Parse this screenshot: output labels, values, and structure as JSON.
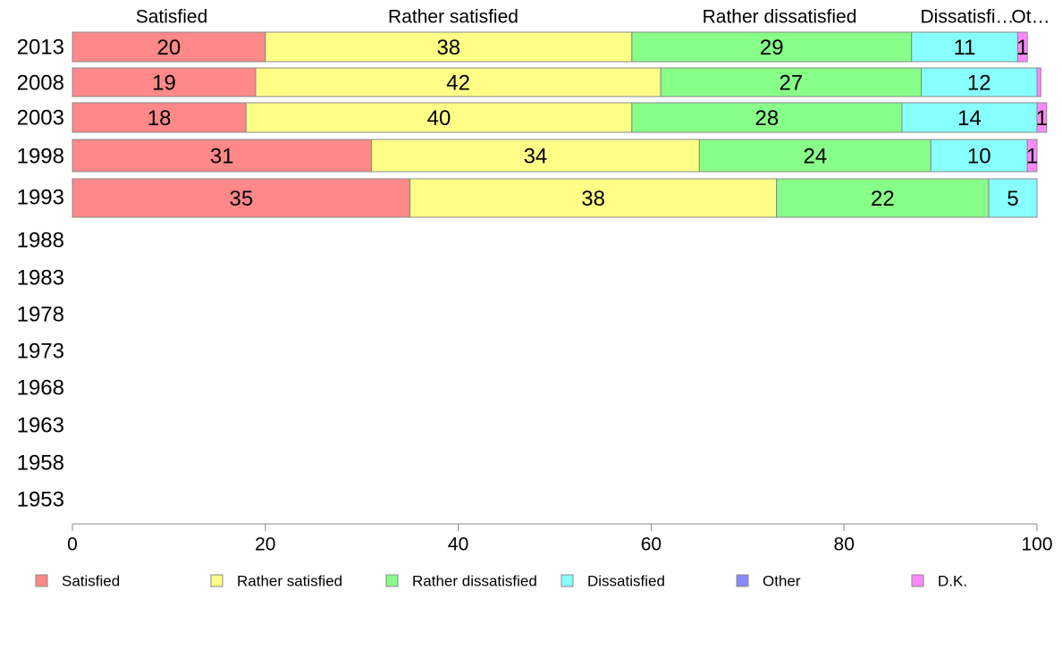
{
  "chart_data": {
    "type": "bar",
    "orientation": "horizontal",
    "stacked": true,
    "categories": [
      "2013",
      "2008",
      "2003",
      "1998",
      "1993",
      "1988",
      "1983",
      "1978",
      "1973",
      "1968",
      "1963",
      "1958",
      "1953"
    ],
    "series": [
      {
        "name": "Satisfied",
        "color": "#ff8888",
        "values": [
          20,
          19,
          18,
          31,
          35,
          null,
          null,
          null,
          null,
          null,
          null,
          null,
          null
        ],
        "labels": [
          "20",
          "19",
          "18",
          "31",
          "35"
        ]
      },
      {
        "name": "Rather satisfied",
        "color": "#ffff88",
        "values": [
          38,
          42,
          40,
          34,
          38,
          null,
          null,
          null,
          null,
          null,
          null,
          null,
          null
        ],
        "labels": [
          "38",
          "42",
          "40",
          "34",
          "38"
        ]
      },
      {
        "name": "Rather dissatisfied",
        "color": "#88ff88",
        "values": [
          29,
          27,
          28,
          24,
          22,
          null,
          null,
          null,
          null,
          null,
          null,
          null,
          null
        ],
        "labels": [
          "29",
          "27",
          "28",
          "24",
          "22"
        ]
      },
      {
        "name": "Dissatisfied",
        "color": "#88ffff",
        "values": [
          11,
          12,
          14,
          10,
          5,
          null,
          null,
          null,
          null,
          null,
          null,
          null,
          null
        ],
        "labels": [
          "11",
          "12",
          "14",
          "10",
          "5"
        ]
      },
      {
        "name": "Other",
        "color": "#8888ff",
        "values": [
          0,
          0,
          0,
          0,
          0,
          null,
          null,
          null,
          null,
          null,
          null,
          null,
          null
        ],
        "labels": [
          "",
          "",
          "",
          "",
          ""
        ]
      },
      {
        "name": "D.K.",
        "color": "#ff88ff",
        "values": [
          1,
          0.4,
          1,
          1,
          0,
          null,
          null,
          null,
          null,
          null,
          null,
          null,
          null
        ],
        "labels": [
          "1",
          "",
          "1",
          "1",
          ""
        ]
      }
    ],
    "top_labels": [
      "Satisfied",
      "Rather satisfied",
      "Rather dissatisfied",
      "Dissatisfi…",
      "Ot…"
    ],
    "xlim": [
      0,
      100
    ],
    "xticks": [
      "0",
      "20",
      "40",
      "60",
      "80",
      "100"
    ],
    "legend_position": "bottom",
    "grid": false
  }
}
